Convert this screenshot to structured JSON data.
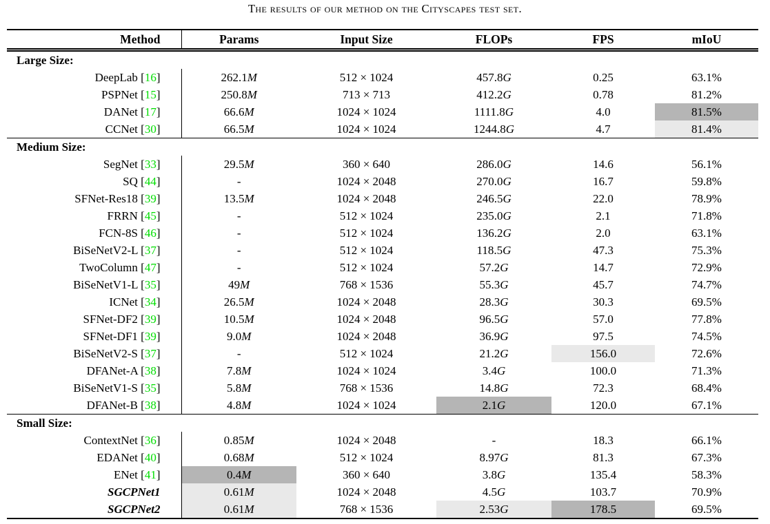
{
  "title": "The results of our method on the Cityscapes test set.",
  "columns": [
    "Method",
    "Params",
    "Input Size",
    "FLOPs",
    "FPS",
    "mIoU"
  ],
  "colors": {
    "citation_green": "#00dd00",
    "highlight_best": "#b5b5b5",
    "highlight_second": "#e9e9e9"
  },
  "sections": [
    {
      "label": "Large Size:",
      "rows": [
        {
          "method": "DeepLab",
          "cite": "16",
          "params": "262.1M",
          "input_size": "512 × 1024",
          "flops": "457.8G",
          "fps": "0.25",
          "miou": "63.1%",
          "emphasis": false,
          "highlights": {}
        },
        {
          "method": "PSPNet",
          "cite": "15",
          "params": "250.8M",
          "input_size": "713 × 713",
          "flops": "412.2G",
          "fps": "0.78",
          "miou": "81.2%",
          "emphasis": false,
          "highlights": {}
        },
        {
          "method": "DANet",
          "cite": "17",
          "params": "66.6M",
          "input_size": "1024 × 1024",
          "flops": "1111.8G",
          "fps": "4.0",
          "miou": "81.5%",
          "emphasis": false,
          "highlights": {
            "miou": "best"
          }
        },
        {
          "method": "CCNet",
          "cite": "30",
          "params": "66.5M",
          "input_size": "1024 × 1024",
          "flops": "1244.8G",
          "fps": "4.7",
          "miou": "81.4%",
          "emphasis": false,
          "highlights": {
            "miou": "second"
          }
        }
      ]
    },
    {
      "label": "Medium Size:",
      "rows": [
        {
          "method": "SegNet",
          "cite": "33",
          "params": "29.5M",
          "input_size": "360 × 640",
          "flops": "286.0G",
          "fps": "14.6",
          "miou": "56.1%",
          "emphasis": false,
          "highlights": {}
        },
        {
          "method": "SQ",
          "cite": "44",
          "params": "-",
          "input_size": "1024 × 2048",
          "flops": "270.0G",
          "fps": "16.7",
          "miou": "59.8%",
          "emphasis": false,
          "highlights": {}
        },
        {
          "method": "SFNet-Res18",
          "cite": "39",
          "params": "13.5M",
          "input_size": "1024 × 2048",
          "flops": "246.5G",
          "fps": "22.0",
          "miou": "78.9%",
          "emphasis": false,
          "highlights": {}
        },
        {
          "method": "FRRN",
          "cite": "45",
          "params": "-",
          "input_size": "512 × 1024",
          "flops": "235.0G",
          "fps": "2.1",
          "miou": "71.8%",
          "emphasis": false,
          "highlights": {}
        },
        {
          "method": "FCN-8S",
          "cite": "46",
          "params": "-",
          "input_size": "512 × 1024",
          "flops": "136.2G",
          "fps": "2.0",
          "miou": "63.1%",
          "emphasis": false,
          "highlights": {}
        },
        {
          "method": "BiSeNetV2-L",
          "cite": "37",
          "params": "-",
          "input_size": "512 × 1024",
          "flops": "118.5G",
          "fps": "47.3",
          "miou": "75.3%",
          "emphasis": false,
          "highlights": {}
        },
        {
          "method": "TwoColumn",
          "cite": "47",
          "params": "-",
          "input_size": "512 × 1024",
          "flops": "57.2G",
          "fps": "14.7",
          "miou": "72.9%",
          "emphasis": false,
          "highlights": {}
        },
        {
          "method": "BiSeNetV1-L",
          "cite": "35",
          "params": "49M",
          "input_size": "768 × 1536",
          "flops": "55.3G",
          "fps": "45.7",
          "miou": "74.7%",
          "emphasis": false,
          "highlights": {}
        },
        {
          "method": "ICNet",
          "cite": "34",
          "params": "26.5M",
          "input_size": "1024 × 2048",
          "flops": "28.3G",
          "fps": "30.3",
          "miou": "69.5%",
          "emphasis": false,
          "highlights": {}
        },
        {
          "method": "SFNet-DF2",
          "cite": "39",
          "params": "10.5M",
          "input_size": "1024 × 2048",
          "flops": "96.5G",
          "fps": "57.0",
          "miou": "77.8%",
          "emphasis": false,
          "highlights": {}
        },
        {
          "method": "SFNet-DF1",
          "cite": "39",
          "params": "9.0M",
          "input_size": "1024 × 2048",
          "flops": "36.9G",
          "fps": "97.5",
          "miou": "74.5%",
          "emphasis": false,
          "highlights": {}
        },
        {
          "method": "BiSeNetV2-S",
          "cite": "37",
          "params": "-",
          "input_size": "512 × 1024",
          "flops": "21.2G",
          "fps": "156.0",
          "miou": "72.6%",
          "emphasis": false,
          "highlights": {
            "fps": "second"
          }
        },
        {
          "method": "DFANet-A",
          "cite": "38",
          "params": "7.8M",
          "input_size": "1024 × 1024",
          "flops": "3.4G",
          "fps": "100.0",
          "miou": "71.3%",
          "emphasis": false,
          "highlights": {}
        },
        {
          "method": "BiSeNetV1-S",
          "cite": "35",
          "params": "5.8M",
          "input_size": "768 × 1536",
          "flops": "14.8G",
          "fps": "72.3",
          "miou": "68.4%",
          "emphasis": false,
          "highlights": {}
        },
        {
          "method": "DFANet-B",
          "cite": "38",
          "params": "4.8M",
          "input_size": "1024 × 1024",
          "flops": "2.1G",
          "fps": "120.0",
          "miou": "67.1%",
          "emphasis": false,
          "highlights": {
            "flops": "best"
          }
        }
      ]
    },
    {
      "label": "Small Size:",
      "rows": [
        {
          "method": "ContextNet",
          "cite": "36",
          "params": "0.85M",
          "input_size": "1024 × 2048",
          "flops": "-",
          "fps": "18.3",
          "miou": "66.1%",
          "emphasis": false,
          "highlights": {}
        },
        {
          "method": "EDANet",
          "cite": "40",
          "params": "0.68M",
          "input_size": "512 × 1024",
          "flops": "8.97G",
          "fps": "81.3",
          "miou": "67.3%",
          "emphasis": false,
          "highlights": {}
        },
        {
          "method": "ENet",
          "cite": "41",
          "params": "0.4M",
          "input_size": "360 × 640",
          "flops": "3.8G",
          "fps": "135.4",
          "miou": "58.3%",
          "emphasis": false,
          "highlights": {
            "params": "best"
          }
        },
        {
          "method": "SGCPNet1",
          "cite": null,
          "params": "0.61M",
          "input_size": "1024 × 2048",
          "flops": "4.5G",
          "fps": "103.7",
          "miou": "70.9%",
          "emphasis": true,
          "highlights": {
            "params": "second"
          }
        },
        {
          "method": "SGCPNet2",
          "cite": null,
          "params": "0.61M",
          "input_size": "768 × 1536",
          "flops": "2.53G",
          "fps": "178.5",
          "miou": "69.5%",
          "emphasis": true,
          "highlights": {
            "params": "second",
            "flops": "second",
            "fps": "best"
          }
        }
      ]
    }
  ]
}
